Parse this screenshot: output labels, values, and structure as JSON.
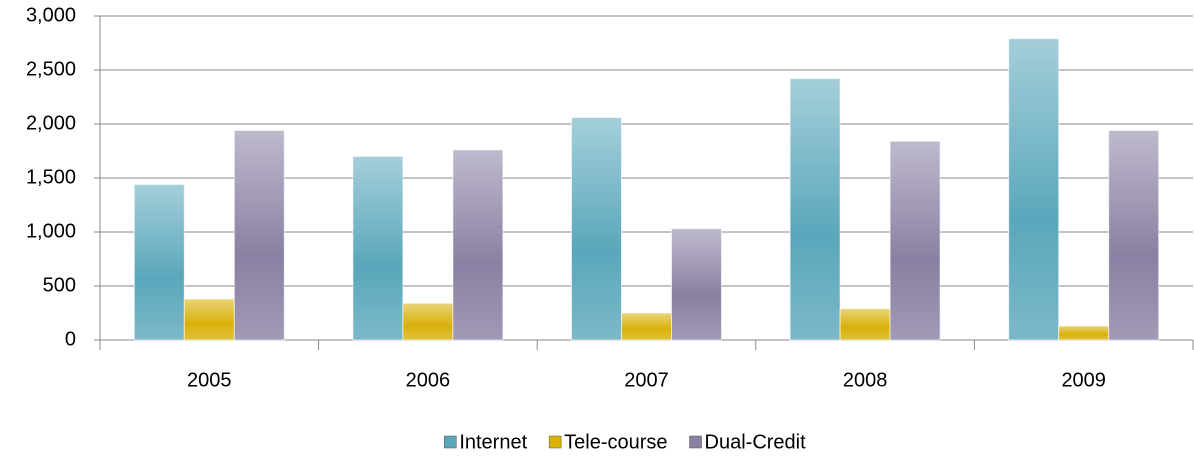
{
  "chart_data": {
    "type": "bar",
    "categories": [
      "2005",
      "2006",
      "2007",
      "2008",
      "2009"
    ],
    "series": [
      {
        "name": "Internet",
        "color": "#5aa7bb",
        "values": [
          1440,
          1700,
          2060,
          2420,
          2790
        ]
      },
      {
        "name": "Tele-course",
        "color": "#d9b10a",
        "values": [
          380,
          340,
          250,
          290,
          130
        ]
      },
      {
        "name": "Dual-Credit",
        "color": "#8a80a3",
        "values": [
          1940,
          1760,
          1030,
          1840,
          1940
        ]
      }
    ],
    "ylim": [
      0,
      3000
    ],
    "yticks": [
      0,
      500,
      {
        "value": 1000,
        "label": "1,000"
      },
      {
        "value": 1500,
        "label": "1,500"
      },
      {
        "value": 2000,
        "label": "2,000"
      },
      {
        "value": 2500,
        "label": "2,500"
      },
      {
        "value": 3000,
        "label": "3,000"
      }
    ],
    "grid": true,
    "legend": "bottom"
  }
}
